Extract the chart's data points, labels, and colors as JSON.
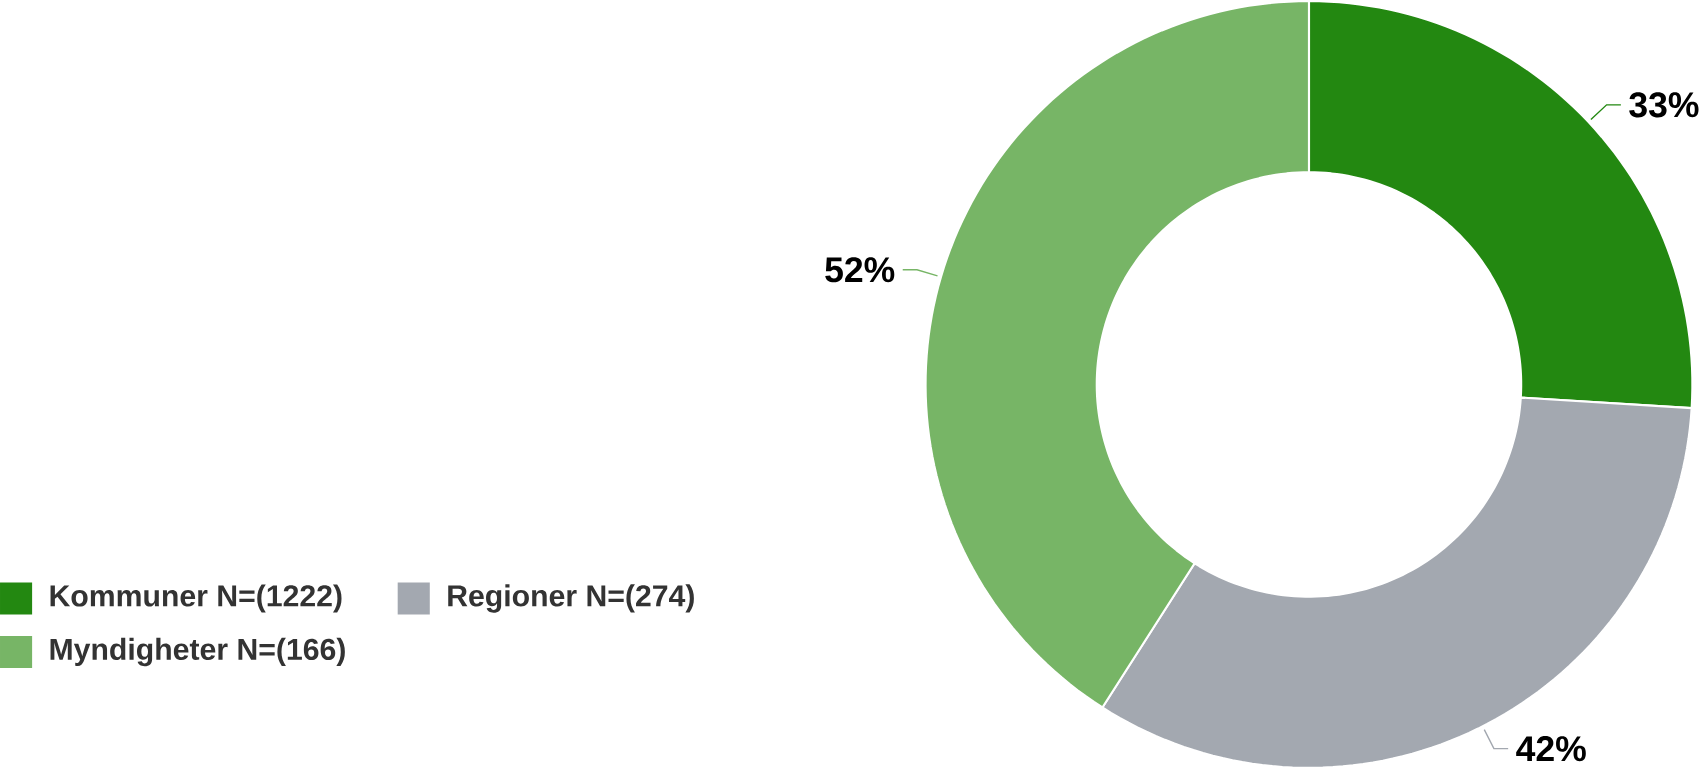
{
  "chart_data": {
    "type": "donut",
    "categories": [
      "Kommuner N=(1222)",
      "Regioner N=(274)",
      "Myndigheter N=(166)"
    ],
    "values": [
      33,
      42,
      52
    ],
    "colors": [
      "#238811",
      "#a3a8b0",
      "#77b566"
    ],
    "value_labels": [
      "33%",
      "42%",
      "52%"
    ],
    "legend": "left"
  }
}
